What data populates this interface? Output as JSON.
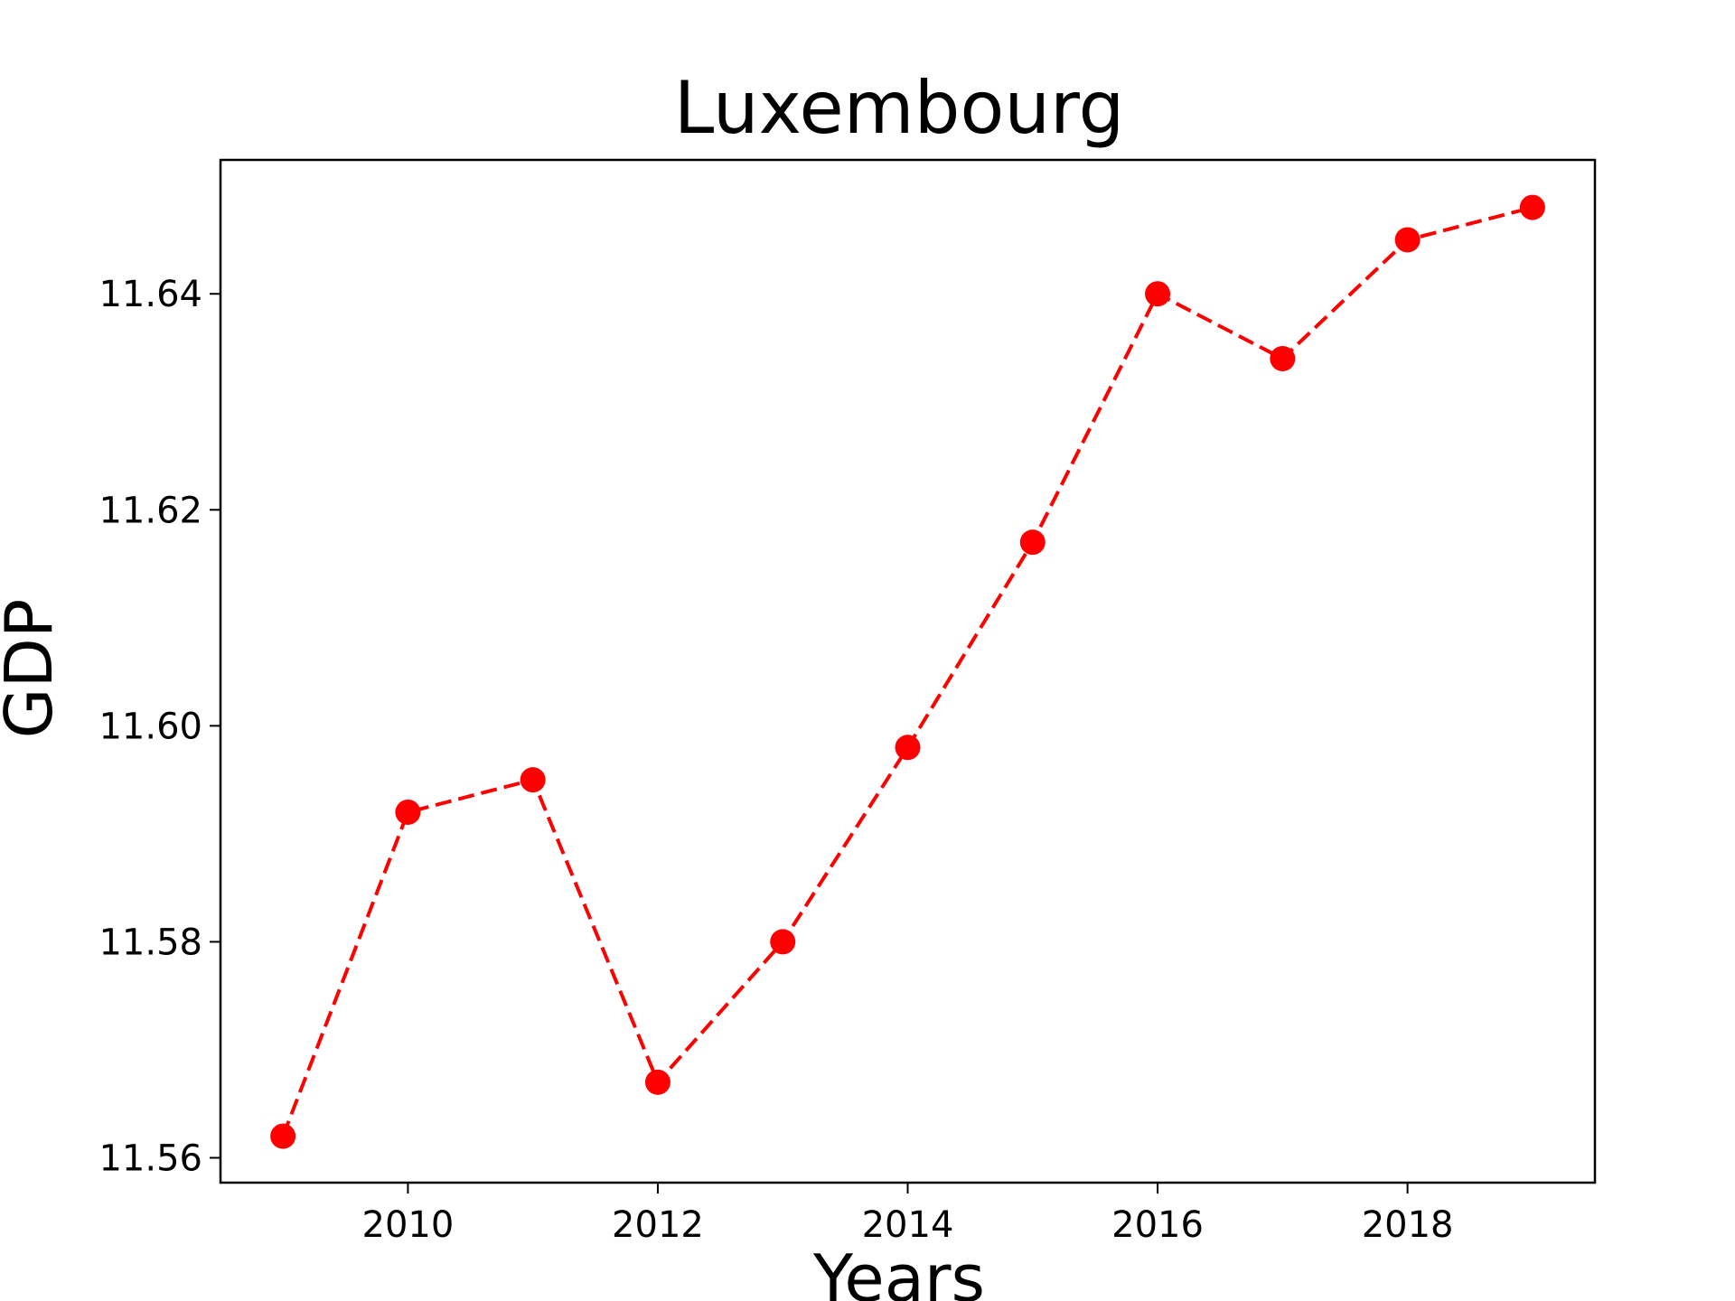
{
  "chart_data": {
    "type": "line",
    "title": "Luxembourg",
    "xlabel": "Years",
    "ylabel": "GDP",
    "x": [
      2009,
      2010,
      2011,
      2012,
      2013,
      2014,
      2015,
      2016,
      2017,
      2018,
      2019
    ],
    "series": [
      {
        "values": [
          11.562,
          11.592,
          11.595,
          11.567,
          11.58,
          11.598,
          11.617,
          11.64,
          11.634,
          11.645,
          11.648
        ],
        "color": "#ff0000",
        "line_style": "dashed",
        "marker": "circle"
      }
    ],
    "xlim": [
      2008.5,
      2019.5
    ],
    "ylim": [
      11.5577,
      11.6524
    ],
    "xticks": [
      2010,
      2012,
      2014,
      2016,
      2018
    ],
    "xtick_labels": [
      "2010",
      "2012",
      "2014",
      "2016",
      "2018"
    ],
    "yticks": [
      11.56,
      11.58,
      11.6,
      11.62,
      11.64
    ],
    "ytick_labels": [
      "11.56",
      "11.58",
      "11.60",
      "11.62",
      "11.64"
    ],
    "grid": false,
    "legend": false
  }
}
